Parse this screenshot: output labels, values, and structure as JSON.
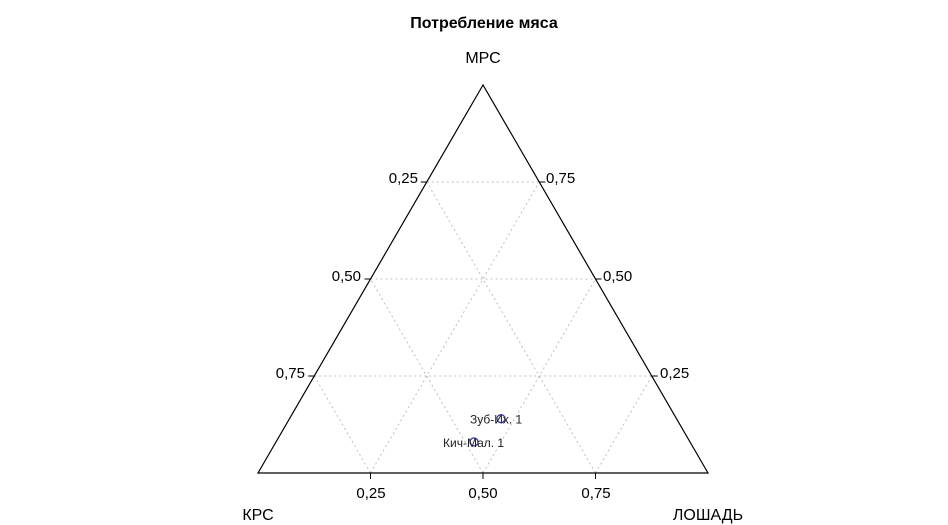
{
  "chart_data": {
    "type": "ternary-scatter",
    "title": "Потребление мяса",
    "axes": {
      "top": "МРС",
      "left": "КРС",
      "right": "ЛОШАДЬ"
    },
    "ticks": {
      "left_edge": [
        "0,25",
        "0,50",
        "0,75"
      ],
      "right_edge": [
        "0,75",
        "0,50",
        "0,25"
      ],
      "bottom_edge": [
        "0,25",
        "0,50",
        "0,75"
      ]
    },
    "grid": true,
    "points": [
      {
        "label": "Зуб-Их. 1",
        "top": 0.14,
        "left": 0.39,
        "right": 0.47
      },
      {
        "label": "Кич-Мал. 1",
        "top": 0.08,
        "left": 0.48,
        "right": 0.44
      }
    ],
    "colors": {
      "axis": "#000000",
      "grid": "#bfbfbf",
      "marker": "#3a3aa0"
    }
  }
}
